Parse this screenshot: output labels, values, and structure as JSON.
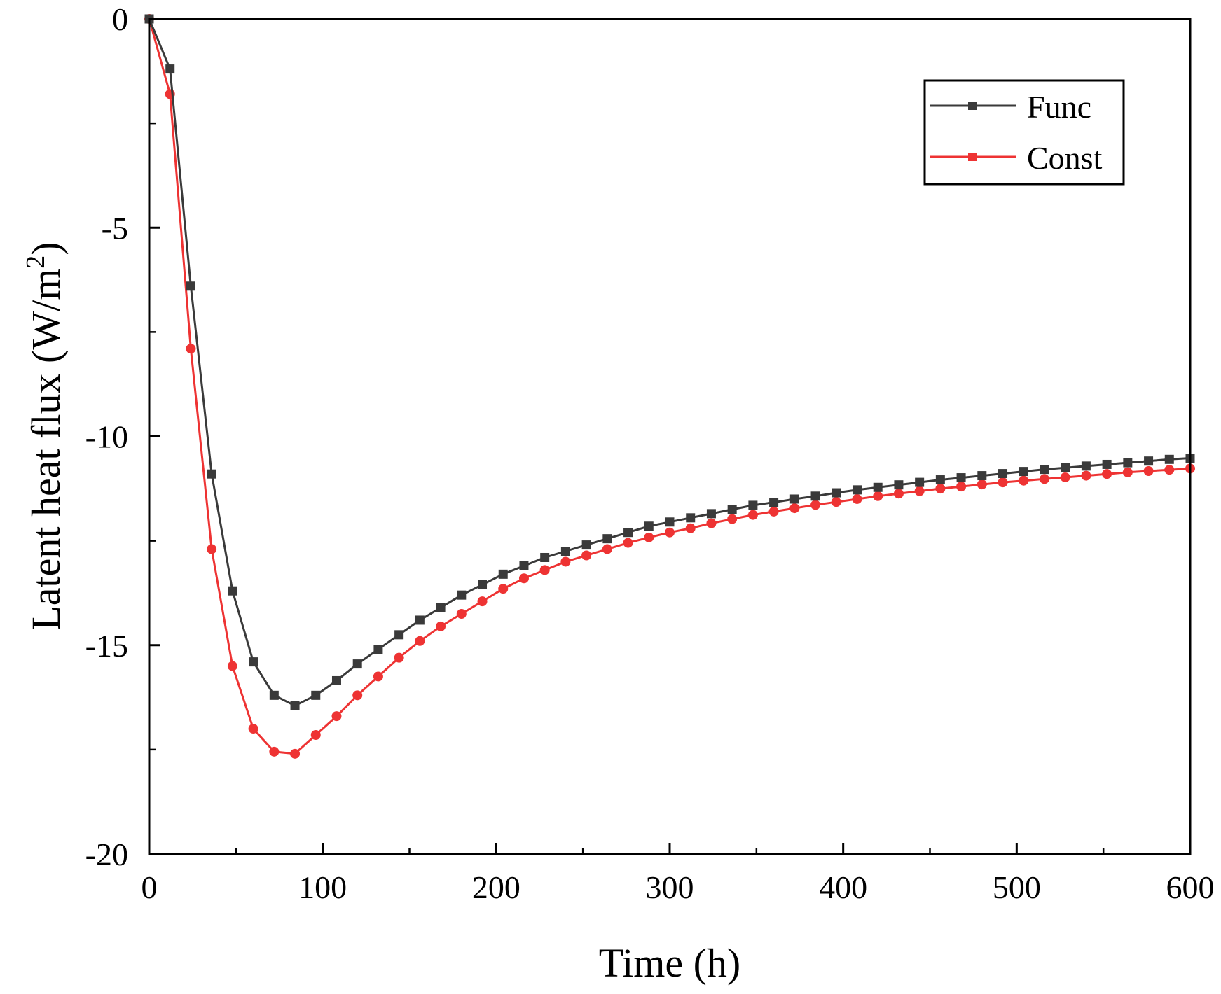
{
  "chart_data": {
    "type": "line",
    "title": "",
    "xlabel": "Time (h)",
    "ylabel_main": "Latent heat flux (W/m",
    "ylabel_sup": "2",
    "ylabel_close": ")",
    "xlim": [
      0,
      600
    ],
    "ylim": [
      -20,
      0
    ],
    "xticks": [
      0,
      100,
      200,
      300,
      400,
      500,
      600
    ],
    "xtick_labels": [
      "0",
      "100",
      "200",
      "300",
      "400",
      "500",
      "600"
    ],
    "yticks": [
      0,
      -5,
      -10,
      -15,
      -20
    ],
    "ytick_labels": [
      "0",
      "-5",
      "-10",
      "-15",
      "-20"
    ],
    "grid": false,
    "legend_position": "top-right",
    "x": [
      0,
      12,
      24,
      36,
      48,
      60,
      72,
      84,
      96,
      108,
      120,
      132,
      144,
      156,
      168,
      180,
      192,
      204,
      216,
      228,
      240,
      252,
      264,
      276,
      288,
      300,
      312,
      324,
      336,
      348,
      360,
      372,
      384,
      396,
      408,
      420,
      432,
      444,
      456,
      468,
      480,
      492,
      504,
      516,
      528,
      540,
      552,
      564,
      576,
      588,
      600
    ],
    "series": [
      {
        "name": "Func",
        "color": "#3a3a3a",
        "values": [
          0,
          -1.2,
          -6.4,
          -10.9,
          -13.7,
          -15.4,
          -16.2,
          -16.45,
          -16.2,
          -15.85,
          -15.45,
          -15.1,
          -14.75,
          -14.4,
          -14.1,
          -13.8,
          -13.55,
          -13.3,
          -13.1,
          -12.9,
          -12.75,
          -12.6,
          -12.45,
          -12.3,
          -12.15,
          -12.05,
          -11.95,
          -11.85,
          -11.75,
          -11.65,
          -11.58,
          -11.5,
          -11.43,
          -11.35,
          -11.28,
          -11.22,
          -11.16,
          -11.1,
          -11.04,
          -10.99,
          -10.94,
          -10.89,
          -10.84,
          -10.79,
          -10.75,
          -10.71,
          -10.67,
          -10.63,
          -10.59,
          -10.55,
          -10.52
        ]
      },
      {
        "name": "Const",
        "color": "#ee3333",
        "values": [
          0,
          -1.8,
          -7.9,
          -12.7,
          -15.5,
          -17.0,
          -17.55,
          -17.6,
          -17.15,
          -16.7,
          -16.2,
          -15.75,
          -15.3,
          -14.9,
          -14.55,
          -14.25,
          -13.95,
          -13.65,
          -13.4,
          -13.2,
          -13.0,
          -12.85,
          -12.7,
          -12.55,
          -12.42,
          -12.3,
          -12.2,
          -12.08,
          -11.98,
          -11.88,
          -11.8,
          -11.72,
          -11.64,
          -11.57,
          -11.5,
          -11.43,
          -11.37,
          -11.31,
          -11.25,
          -11.2,
          -11.15,
          -11.1,
          -11.06,
          -11.02,
          -10.98,
          -10.94,
          -10.9,
          -10.86,
          -10.83,
          -10.8,
          -10.77
        ]
      }
    ]
  }
}
